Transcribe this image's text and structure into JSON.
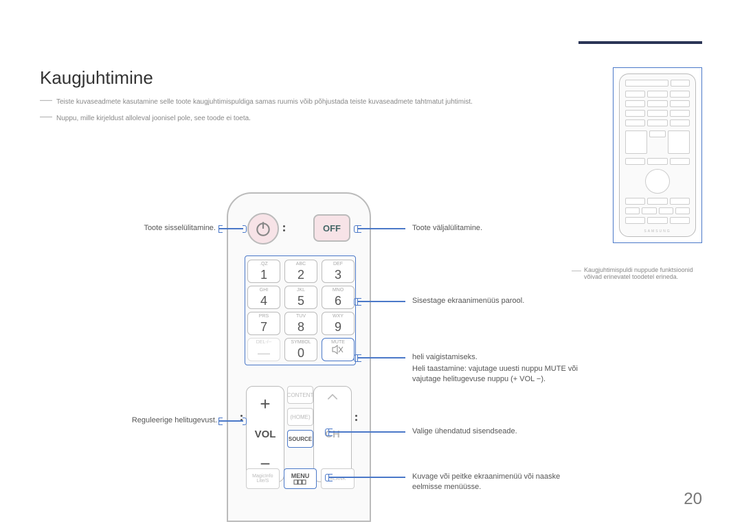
{
  "title": "Kaugjuhtimine",
  "notes": [
    "Teiste kuvaseadmete kasutamine selle toote kaugjuhtimispuldiga samas ruumis võib põhjustada teiste kuvaseadmete tahtmatut juhtimist.",
    "Nuppu, mille kirjeldust alloleval joonisel pole, see toode ei toeta."
  ],
  "small_note": "Kaugjuhtimispuldi nuppude funktsioonid võivad erinevatel toodetel erineda.",
  "off_label": "OFF",
  "keypad": [
    {
      "n": "1",
      "s": ".QZ"
    },
    {
      "n": "2",
      "s": "ABC"
    },
    {
      "n": "3",
      "s": "DEF"
    },
    {
      "n": "4",
      "s": "GHI"
    },
    {
      "n": "5",
      "s": "JKL"
    },
    {
      "n": "6",
      "s": "MNO"
    },
    {
      "n": "7",
      "s": "PRS"
    },
    {
      "n": "8",
      "s": "TUV"
    },
    {
      "n": "9",
      "s": "WXY"
    },
    {
      "n": "—",
      "s": "DEL-/--"
    },
    {
      "n": "0",
      "s": "SYMBOL"
    },
    {
      "n": "",
      "s": "MUTE",
      "mute": true
    }
  ],
  "vol_label": "VOL",
  "ch_label": "CH",
  "mid": [
    "CONTENT",
    "(HOME)",
    "SOURCE"
  ],
  "source_label": "SOURCE",
  "bottom_row": [
    {
      "l1": "MagicInfo",
      "l2": "Lite/S"
    },
    {
      "l1": "MENU",
      "hl": true
    },
    {
      "l1": "BLANK"
    }
  ],
  "callouts": {
    "power_on": "Toote sisselülitamine.",
    "power_off": "Toote väljalülitamine.",
    "password": "Sisestage ekraanimenüüs parool.",
    "mute": "heli vaigistamiseks.",
    "mute2": "Heli taastamine: vajutage uuesti nuppu MUTE või vajutage helitugevuse nuppu (+ VOL −).",
    "vol": "Reguleerige helitugevust.",
    "source": "Valige ühendatud sisendseade.",
    "menu": "Kuvage või peitke ekraanimenüü või naaske eelmisse menüüsse."
  },
  "page_number": "20",
  "colors": {
    "hl": "#4a78c8",
    "rule": "#2b3556",
    "pink": "#f7e3e7"
  }
}
